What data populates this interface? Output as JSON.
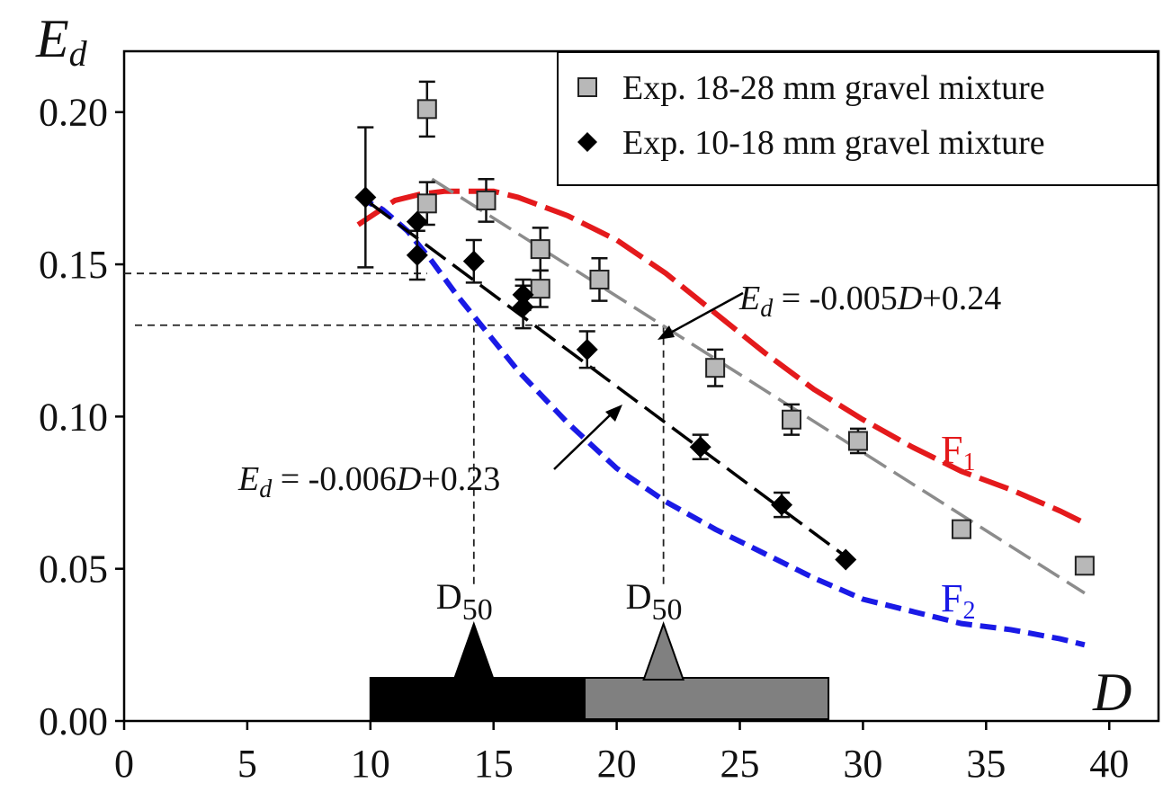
{
  "chart_data": {
    "type": "scatter",
    "xlabel": "D",
    "ylabel_main": "E",
    "ylabel_sub": "d",
    "xlim": [
      0,
      42
    ],
    "ylim": [
      0,
      0.22
    ],
    "x_ticks": [
      "0",
      "5",
      "10",
      "15",
      "20",
      "25",
      "30",
      "35",
      "40"
    ],
    "y_ticks": [
      "0.00",
      "0.05",
      "0.10",
      "0.15",
      "0.20"
    ],
    "legend_position": "top-right",
    "series": [
      {
        "name": "Exp. 18-28 mm gravel mixture",
        "marker": "square",
        "color": "#b8b8b8",
        "points": [
          {
            "x": 12.3,
            "y": 0.201,
            "err": 0.009
          },
          {
            "x": 12.3,
            "y": 0.17,
            "err": 0.007
          },
          {
            "x": 14.7,
            "y": 0.171,
            "err": 0.007
          },
          {
            "x": 16.9,
            "y": 0.155,
            "err": 0.007
          },
          {
            "x": 16.9,
            "y": 0.142,
            "err": 0.006
          },
          {
            "x": 19.3,
            "y": 0.145,
            "err": 0.007
          },
          {
            "x": 24.0,
            "y": 0.116,
            "err": 0.006
          },
          {
            "x": 27.1,
            "y": 0.099,
            "err": 0.005
          },
          {
            "x": 29.8,
            "y": 0.092,
            "err": 0.004
          },
          {
            "x": 34.0,
            "y": 0.063,
            "err": 0.0
          },
          {
            "x": 39.0,
            "y": 0.051,
            "err": 0.0
          }
        ]
      },
      {
        "name": "Exp. 10-18 mm gravel mixture",
        "marker": "diamond",
        "color": "#000000",
        "points": [
          {
            "x": 9.8,
            "y": 0.172,
            "err": 0.023
          },
          {
            "x": 11.9,
            "y": 0.164,
            "err": 0.0
          },
          {
            "x": 11.9,
            "y": 0.153,
            "err": 0.008
          },
          {
            "x": 14.2,
            "y": 0.151,
            "err": 0.007
          },
          {
            "x": 16.2,
            "y": 0.14,
            "err": 0.005
          },
          {
            "x": 16.2,
            "y": 0.136,
            "err": 0.007
          },
          {
            "x": 18.8,
            "y": 0.122,
            "err": 0.006
          },
          {
            "x": 23.4,
            "y": 0.09,
            "err": 0.004
          },
          {
            "x": 26.7,
            "y": 0.071,
            "err": 0.004
          },
          {
            "x": 29.3,
            "y": 0.053,
            "err": 0.0
          }
        ]
      }
    ],
    "fit_lines": [
      {
        "color": "#8c8c8c",
        "x": [
          12.5,
          39.0
        ],
        "y": [
          0.178,
          0.042
        ],
        "label": "= -0.005D+0.24"
      },
      {
        "color": "#000000",
        "x": [
          10.0,
          29.3
        ],
        "y": [
          0.17,
          0.054
        ],
        "label": "= -0.006D+0.23"
      }
    ],
    "curves": [
      {
        "name": "F1",
        "color": "#e41a1c",
        "x": [
          9.5,
          11,
          12,
          13,
          14,
          15,
          16,
          18,
          20,
          22,
          24,
          26,
          28,
          30,
          32,
          34,
          36,
          38,
          39
        ],
        "y": [
          0.163,
          0.171,
          0.173,
          0.174,
          0.174,
          0.174,
          0.172,
          0.166,
          0.158,
          0.147,
          0.134,
          0.121,
          0.109,
          0.099,
          0.09,
          0.082,
          0.076,
          0.069,
          0.065
        ]
      },
      {
        "name": "F2",
        "color": "#1a1ae6",
        "x": [
          9.5,
          10.5,
          11.5,
          12.5,
          13.5,
          14.5,
          16,
          18,
          20,
          22,
          24,
          26,
          28,
          30,
          32,
          34,
          36,
          38,
          39
        ],
        "y": [
          0.172,
          0.168,
          0.161,
          0.151,
          0.14,
          0.13,
          0.115,
          0.098,
          0.083,
          0.072,
          0.063,
          0.055,
          0.047,
          0.04,
          0.036,
          0.032,
          0.03,
          0.027,
          0.025
        ]
      }
    ],
    "d50_markers": [
      {
        "x": 14.2,
        "y": 0.13,
        "color": "#000000",
        "label": "D",
        "sub": "50"
      },
      {
        "x": 21.9,
        "y": 0.13,
        "color": "#808080",
        "label": "D",
        "sub": "50"
      }
    ],
    "d50_ref_levels": [
      0.147,
      0.13
    ],
    "range_bars": [
      {
        "x_start": 10.0,
        "x_end": 18.7,
        "color": "#000000"
      },
      {
        "x_start": 18.7,
        "x_end": 28.6,
        "color": "#808080"
      }
    ],
    "equations": [
      {
        "prefix": "E",
        "sub": "d",
        "text": " = -0.005",
        "var": "D",
        "tail": "+0.24"
      },
      {
        "prefix": "E",
        "sub": "d",
        "text": " = -0.006",
        "var": "D",
        "tail": "+0.23"
      }
    ],
    "curve_labels": [
      {
        "text": "F",
        "sub": "1",
        "color": "#e41a1c"
      },
      {
        "text": "F",
        "sub": "2",
        "color": "#1a1ae6"
      }
    ]
  }
}
